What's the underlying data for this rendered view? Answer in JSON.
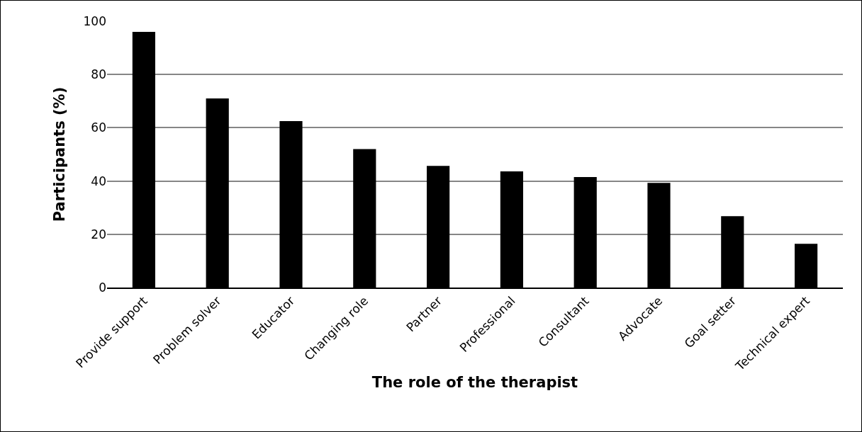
{
  "chart_data": {
    "type": "bar",
    "xlabel": "The role of the therapist",
    "ylabel": "Participants (%)",
    "categories": [
      "Provide support",
      "Problem solver",
      "Educator",
      "Changing role",
      "Partner",
      "Professional",
      "Consultant",
      "Advocate",
      "Goal setter",
      "Technical expert"
    ],
    "values": [
      96,
      71,
      62.5,
      52,
      45.7,
      43.6,
      41.5,
      39.3,
      26.8,
      16.4
    ],
    "color": "#000000",
    "ylim": [
      0,
      100
    ],
    "yticks": [
      0,
      20,
      40,
      60,
      80,
      100
    ],
    "grid": "y",
    "legend": false
  }
}
